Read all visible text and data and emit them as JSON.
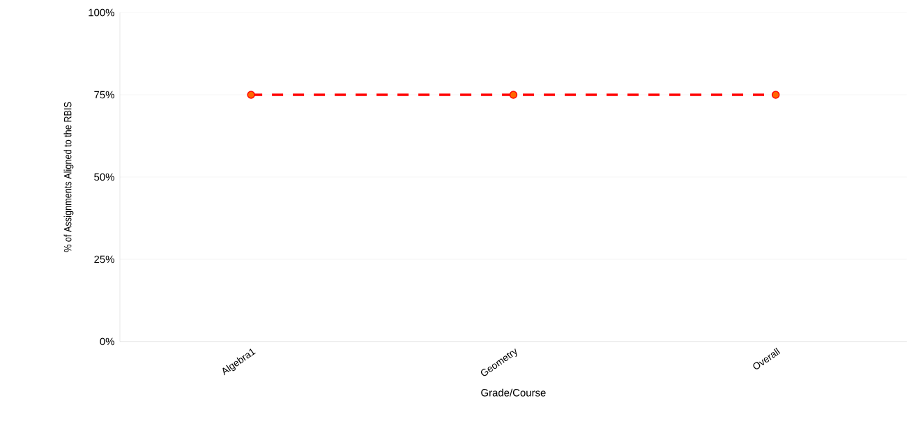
{
  "chart_data": {
    "type": "line",
    "xlabel": "Grade/Course",
    "ylabel": "% of Assignments Aligned to the RBIS",
    "categories": [
      "Algebra1",
      "Geometry",
      "Overall"
    ],
    "series": [
      {
        "color": "#ff0000",
        "values": [
          75,
          75,
          75
        ]
      }
    ],
    "ylim": [
      0,
      100
    ],
    "yticks": [
      {
        "value": 0,
        "label": "0%"
      },
      {
        "value": 25,
        "label": "25%"
      },
      {
        "value": 50,
        "label": "50%"
      },
      {
        "value": 75,
        "label": "75%"
      },
      {
        "value": 100,
        "label": "100%"
      }
    ],
    "grid": "y",
    "marker": "circle",
    "line_style": "dashed"
  }
}
